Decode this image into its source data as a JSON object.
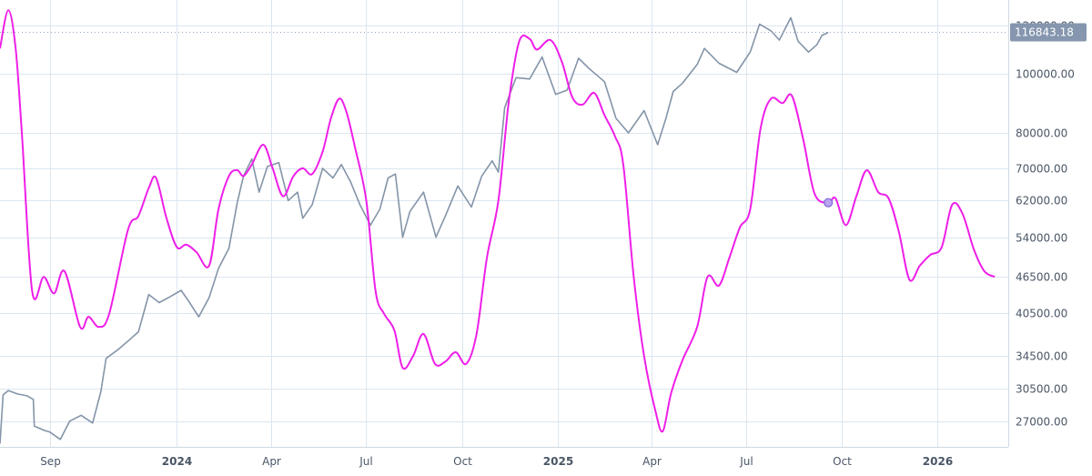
{
  "chart_data": {
    "type": "line",
    "price_scale": "log",
    "ylim": [
      24500,
      132000
    ],
    "y_ticks": [
      {
        "value": 120000,
        "label": "120000.00"
      },
      {
        "value": 100000,
        "label": "100000.00"
      },
      {
        "value": 80000,
        "label": "80000.00"
      },
      {
        "value": 70000,
        "label": "70000.00"
      },
      {
        "value": 62000,
        "label": "62000.00"
      },
      {
        "value": 54000,
        "label": "54000.00"
      },
      {
        "value": 46500,
        "label": "46500.00"
      },
      {
        "value": 40500,
        "label": "40500.00"
      },
      {
        "value": 34500,
        "label": "34500.00"
      },
      {
        "value": 30500,
        "label": "30500.00"
      },
      {
        "value": 27000,
        "label": "27000.00"
      }
    ],
    "x_range": [
      "2023-07-15",
      "2026-03-10"
    ],
    "x_ticks": [
      {
        "date": "2023-09-01",
        "label": "Sep",
        "bold": false
      },
      {
        "date": "2024-01-01",
        "label": "2024",
        "bold": true
      },
      {
        "date": "2024-04-01",
        "label": "Apr",
        "bold": false
      },
      {
        "date": "2024-07-01",
        "label": "Jul",
        "bold": false
      },
      {
        "date": "2024-10-01",
        "label": "Oct",
        "bold": false
      },
      {
        "date": "2025-01-01",
        "label": "2025",
        "bold": true
      },
      {
        "date": "2025-04-01",
        "label": "Apr",
        "bold": false
      },
      {
        "date": "2025-07-01",
        "label": "Jul",
        "bold": false
      },
      {
        "date": "2025-10-01",
        "label": "Oct",
        "bold": false
      },
      {
        "date": "2026-01-01",
        "label": "2026",
        "bold": true
      }
    ],
    "grid": true,
    "last_price": {
      "value": 116843.18,
      "label": "116843.18"
    },
    "series": [
      {
        "color": "#8494a8",
        "points": [
          [
            "2023-07-15",
            24800
          ],
          [
            "2023-07-18",
            29800
          ],
          [
            "2023-07-23",
            30300
          ],
          [
            "2023-08-01",
            29900
          ],
          [
            "2023-08-10",
            29700
          ],
          [
            "2023-08-16",
            29300
          ],
          [
            "2023-08-17",
            26500
          ],
          [
            "2023-08-26",
            26100
          ],
          [
            "2023-09-01",
            25900
          ],
          [
            "2023-09-11",
            25200
          ],
          [
            "2023-09-20",
            27000
          ],
          [
            "2023-10-01",
            27600
          ],
          [
            "2023-10-12",
            26800
          ],
          [
            "2023-10-20",
            30200
          ],
          [
            "2023-10-25",
            34200
          ],
          [
            "2023-11-05",
            35300
          ],
          [
            "2023-11-15",
            36500
          ],
          [
            "2023-11-25",
            37800
          ],
          [
            "2023-12-05",
            43500
          ],
          [
            "2023-12-15",
            42200
          ],
          [
            "2023-12-25",
            43100
          ],
          [
            "2024-01-05",
            44200
          ],
          [
            "2024-01-12",
            42500
          ],
          [
            "2024-01-22",
            40000
          ],
          [
            "2024-02-01",
            43000
          ],
          [
            "2024-02-10",
            48000
          ],
          [
            "2024-02-20",
            51800
          ],
          [
            "2024-02-28",
            61500
          ],
          [
            "2024-03-05",
            68000
          ],
          [
            "2024-03-13",
            72500
          ],
          [
            "2024-03-20",
            64000
          ],
          [
            "2024-03-28",
            70500
          ],
          [
            "2024-04-08",
            71500
          ],
          [
            "2024-04-17",
            62000
          ],
          [
            "2024-04-26",
            64000
          ],
          [
            "2024-05-01",
            58000
          ],
          [
            "2024-05-10",
            61000
          ],
          [
            "2024-05-20",
            70000
          ],
          [
            "2024-05-30",
            67500
          ],
          [
            "2024-06-07",
            71000
          ],
          [
            "2024-06-16",
            66500
          ],
          [
            "2024-06-25",
            61000
          ],
          [
            "2024-07-05",
            56500
          ],
          [
            "2024-07-14",
            60000
          ],
          [
            "2024-07-22",
            67500
          ],
          [
            "2024-07-29",
            68500
          ],
          [
            "2024-08-05",
            54000
          ],
          [
            "2024-08-12",
            59500
          ],
          [
            "2024-08-25",
            64000
          ],
          [
            "2024-09-06",
            54000
          ],
          [
            "2024-09-15",
            58500
          ],
          [
            "2024-09-27",
            65500
          ],
          [
            "2024-10-10",
            60500
          ],
          [
            "2024-10-20",
            68000
          ],
          [
            "2024-10-30",
            72000
          ],
          [
            "2024-11-05",
            69000
          ],
          [
            "2024-11-11",
            88000
          ],
          [
            "2024-11-22",
            98500
          ],
          [
            "2024-12-05",
            98000
          ],
          [
            "2024-12-17",
            106500
          ],
          [
            "2024-12-30",
            92500
          ],
          [
            "2025-01-10",
            94000
          ],
          [
            "2025-01-21",
            106000
          ],
          [
            "2025-01-31",
            102000
          ],
          [
            "2025-02-15",
            97000
          ],
          [
            "2025-02-26",
            84500
          ],
          [
            "2025-03-10",
            80000
          ],
          [
            "2025-03-25",
            87000
          ],
          [
            "2025-04-07",
            76500
          ],
          [
            "2025-04-15",
            84500
          ],
          [
            "2025-04-22",
            93500
          ],
          [
            "2025-05-01",
            96500
          ],
          [
            "2025-05-15",
            103500
          ],
          [
            "2025-05-22",
            110000
          ],
          [
            "2025-06-05",
            104000
          ],
          [
            "2025-06-22",
            100500
          ],
          [
            "2025-07-05",
            108500
          ],
          [
            "2025-07-14",
            120500
          ],
          [
            "2025-07-25",
            117500
          ],
          [
            "2025-08-02",
            113500
          ],
          [
            "2025-08-13",
            123500
          ],
          [
            "2025-08-20",
            113000
          ],
          [
            "2025-08-30",
            108500
          ],
          [
            "2025-09-07",
            111500
          ],
          [
            "2025-09-12",
            115500
          ],
          [
            "2025-09-18",
            116843.18
          ]
        ]
      },
      {
        "color": "#ee1fe8",
        "points": [
          [
            "2023-07-15",
            110000
          ],
          [
            "2023-07-23",
            127000
          ],
          [
            "2023-07-30",
            110000
          ],
          [
            "2023-08-05",
            80000
          ],
          [
            "2023-08-15",
            44000
          ],
          [
            "2023-08-26",
            46500
          ],
          [
            "2023-09-05",
            43700
          ],
          [
            "2023-09-15",
            47500
          ],
          [
            "2023-09-30",
            38500
          ],
          [
            "2023-10-08",
            40000
          ],
          [
            "2023-10-18",
            38500
          ],
          [
            "2023-10-28",
            40500
          ],
          [
            "2023-11-15",
            55500
          ],
          [
            "2023-11-25",
            58500
          ],
          [
            "2023-12-05",
            65000
          ],
          [
            "2023-12-12",
            67500
          ],
          [
            "2023-12-22",
            58000
          ],
          [
            "2024-01-01",
            52000
          ],
          [
            "2024-01-10",
            52500
          ],
          [
            "2024-01-20",
            51000
          ],
          [
            "2024-02-01",
            48500
          ],
          [
            "2024-02-10",
            60000
          ],
          [
            "2024-02-20",
            68000
          ],
          [
            "2024-02-28",
            69500
          ],
          [
            "2024-03-05",
            68000
          ],
          [
            "2024-03-13",
            71000
          ],
          [
            "2024-03-24",
            76500
          ],
          [
            "2024-04-02",
            70000
          ],
          [
            "2024-04-12",
            63000
          ],
          [
            "2024-04-22",
            68000
          ],
          [
            "2024-05-01",
            70000
          ],
          [
            "2024-05-10",
            68500
          ],
          [
            "2024-05-20",
            74500
          ],
          [
            "2024-05-28",
            84500
          ],
          [
            "2024-06-05",
            91000
          ],
          [
            "2024-06-12",
            86500
          ],
          [
            "2024-06-20",
            76000
          ],
          [
            "2024-07-01",
            62000
          ],
          [
            "2024-07-10",
            44000
          ],
          [
            "2024-07-18",
            40500
          ],
          [
            "2024-07-28",
            38000
          ],
          [
            "2024-08-05",
            33000
          ],
          [
            "2024-08-15",
            34500
          ],
          [
            "2024-08-25",
            37500
          ],
          [
            "2024-09-05",
            33500
          ],
          [
            "2024-09-15",
            33800
          ],
          [
            "2024-09-25",
            35000
          ],
          [
            "2024-10-05",
            33500
          ],
          [
            "2024-10-15",
            37500
          ],
          [
            "2024-10-25",
            50000
          ],
          [
            "2024-11-05",
            62000
          ],
          [
            "2024-11-15",
            90000
          ],
          [
            "2024-11-25",
            113000
          ],
          [
            "2024-12-05",
            114000
          ],
          [
            "2024-12-12",
            109500
          ],
          [
            "2024-12-25",
            113500
          ],
          [
            "2025-01-05",
            104500
          ],
          [
            "2025-01-15",
            91500
          ],
          [
            "2025-01-25",
            89000
          ],
          [
            "2025-02-05",
            93000
          ],
          [
            "2025-02-15",
            85500
          ],
          [
            "2025-02-25",
            79000
          ],
          [
            "2025-03-05",
            71000
          ],
          [
            "2025-03-15",
            46500
          ],
          [
            "2025-03-25",
            34500
          ],
          [
            "2025-04-05",
            28000
          ],
          [
            "2025-04-12",
            26000
          ],
          [
            "2025-04-20",
            30000
          ],
          [
            "2025-05-01",
            34000
          ],
          [
            "2025-05-15",
            38500
          ],
          [
            "2025-05-25",
            46500
          ],
          [
            "2025-06-05",
            45000
          ],
          [
            "2025-06-15",
            50000
          ],
          [
            "2025-06-25",
            56000
          ],
          [
            "2025-07-05",
            60000
          ],
          [
            "2025-07-15",
            81500
          ],
          [
            "2025-07-25",
            91000
          ],
          [
            "2025-08-05",
            89500
          ],
          [
            "2025-08-14",
            92000
          ],
          [
            "2025-08-25",
            78000
          ],
          [
            "2025-09-05",
            63500
          ],
          [
            "2025-09-18",
            61500
          ],
          [
            "2025-09-25",
            62500
          ],
          [
            "2025-10-05",
            56500
          ],
          [
            "2025-10-15",
            63000
          ],
          [
            "2025-10-25",
            69500
          ],
          [
            "2025-11-05",
            64000
          ],
          [
            "2025-11-15",
            62500
          ],
          [
            "2025-11-25",
            55000
          ],
          [
            "2025-12-05",
            46000
          ],
          [
            "2025-12-15",
            48500
          ],
          [
            "2025-12-25",
            50500
          ],
          [
            "2026-01-05",
            52000
          ],
          [
            "2026-01-15",
            61000
          ],
          [
            "2026-01-25",
            59000
          ],
          [
            "2026-02-05",
            51500
          ],
          [
            "2026-02-15",
            47500
          ],
          [
            "2026-02-25",
            46500
          ]
        ]
      }
    ],
    "marker": {
      "date": "2025-09-18",
      "value": 61500,
      "fill": "#b9a4f0",
      "stroke": "#7f66d9"
    }
  }
}
